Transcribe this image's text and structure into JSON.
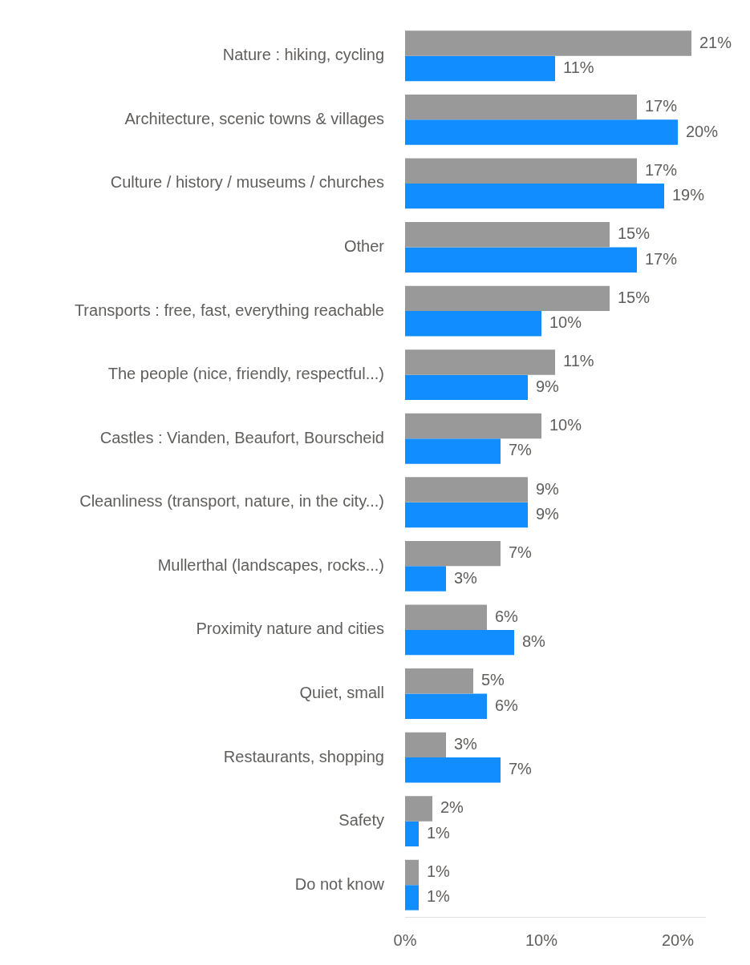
{
  "chart_data": {
    "type": "bar",
    "orientation": "horizontal",
    "categories": [
      "Nature : hiking, cycling",
      "Architecture, scenic towns & villages",
      "Culture / history / museums / churches",
      "Other",
      "Transports : free, fast, everything reachable",
      "The people (nice, friendly, respectful...)",
      "Castles : Vianden, Beaufort, Bourscheid",
      "Cleanliness (transport, nature, in the city...)",
      "Mullerthal (landscapes, rocks...)",
      "Proximity nature and cities",
      "Quiet, small",
      "Restaurants, shopping",
      "Safety",
      "Do not know"
    ],
    "series": [
      {
        "color": "#999999",
        "values": [
          21,
          17,
          17,
          15,
          15,
          11,
          10,
          9,
          7,
          6,
          5,
          3,
          2,
          1
        ],
        "value_labels": [
          "21%",
          "17%",
          "17%",
          "15%",
          "15%",
          "11%",
          "10%",
          "9%",
          "7%",
          "6%",
          "5%",
          "3%",
          "2%",
          "1%"
        ]
      },
      {
        "color": "#118dff",
        "values": [
          11,
          20,
          19,
          17,
          10,
          9,
          7,
          9,
          3,
          8,
          6,
          7,
          1,
          1
        ],
        "value_labels": [
          "11%",
          "20%",
          "19%",
          "17%",
          "10%",
          "9%",
          "7%",
          "9%",
          "3%",
          "8%",
          "6%",
          "7%",
          "1%",
          "1%"
        ]
      }
    ],
    "xlim": [
      0,
      22
    ],
    "xticks": [
      {
        "value": 0,
        "label": "0%"
      },
      {
        "value": 10,
        "label": "10%"
      },
      {
        "value": 20,
        "label": "20%"
      }
    ]
  }
}
